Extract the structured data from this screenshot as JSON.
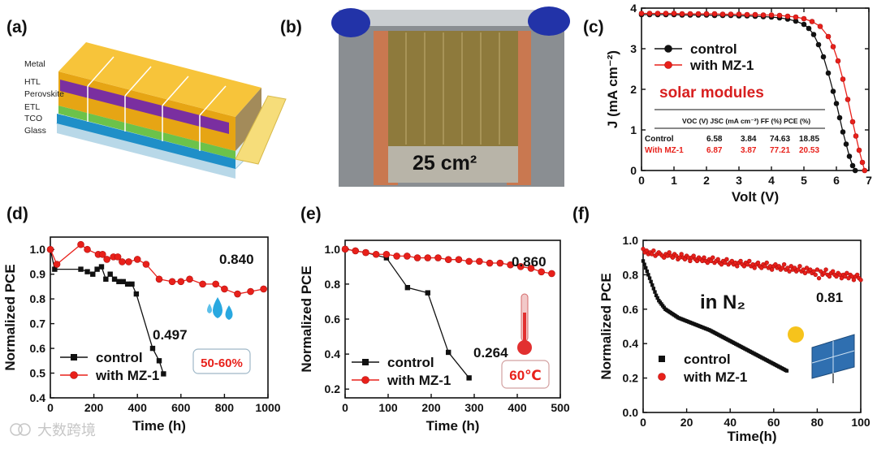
{
  "colors": {
    "control": "#111111",
    "mz": "#e8201a",
    "stack_gold": "#f3b21b",
    "perovskite": "#7a2fa0",
    "etl": "#6cc24a",
    "tco": "#1f8fc8",
    "solar_text": "#d81f1f"
  },
  "panel_a": {
    "label": "(a)",
    "layers": [
      "Metal",
      "HTL",
      "Perovskite",
      "ETL",
      "TCO",
      "Glass"
    ]
  },
  "panel_b": {
    "label": "(b)",
    "area_text": "25 cm²"
  },
  "chart_data": [
    {
      "id": "c",
      "type": "line",
      "panel_label": "(c)",
      "title": "",
      "xlabel": "Volt (V)",
      "ylabel": "J (mA cm⁻²)",
      "xlim": [
        0,
        7
      ],
      "ylim": [
        0,
        4
      ],
      "xticks": [
        "0",
        "1",
        "2",
        "3",
        "4",
        "5",
        "6",
        "7"
      ],
      "yticks": [
        "0",
        "1",
        "2",
        "3",
        "4"
      ],
      "annotation": "solar modules",
      "legend": [
        "control",
        "with MZ-1"
      ],
      "series": [
        {
          "name": "control",
          "x": [
            0,
            0.25,
            0.5,
            0.75,
            1,
            1.25,
            1.5,
            1.75,
            2,
            2.25,
            2.5,
            2.75,
            3,
            3.25,
            3.5,
            3.75,
            4,
            4.25,
            4.5,
            4.75,
            5,
            5.15,
            5.3,
            5.45,
            5.6,
            5.75,
            5.9,
            6.0,
            6.1,
            6.2,
            6.3,
            6.4,
            6.5,
            6.58
          ],
          "y": [
            3.84,
            3.84,
            3.84,
            3.84,
            3.84,
            3.83,
            3.83,
            3.83,
            3.83,
            3.82,
            3.82,
            3.82,
            3.81,
            3.81,
            3.8,
            3.79,
            3.78,
            3.76,
            3.73,
            3.68,
            3.6,
            3.5,
            3.35,
            3.1,
            2.8,
            2.4,
            1.95,
            1.65,
            1.3,
            0.95,
            0.65,
            0.35,
            0.12,
            0
          ]
        },
        {
          "name": "with MZ-1",
          "x": [
            0,
            0.25,
            0.5,
            0.75,
            1,
            1.25,
            1.5,
            1.75,
            2,
            2.25,
            2.5,
            2.75,
            3,
            3.25,
            3.5,
            3.75,
            4,
            4.25,
            4.5,
            4.75,
            5,
            5.25,
            5.5,
            5.75,
            5.9,
            6.05,
            6.2,
            6.35,
            6.5,
            6.6,
            6.7,
            6.8,
            6.87
          ],
          "y": [
            3.87,
            3.87,
            3.87,
            3.87,
            3.87,
            3.86,
            3.86,
            3.86,
            3.86,
            3.86,
            3.85,
            3.85,
            3.85,
            3.84,
            3.84,
            3.83,
            3.83,
            3.82,
            3.8,
            3.78,
            3.74,
            3.67,
            3.55,
            3.3,
            3.05,
            2.7,
            2.25,
            1.75,
            1.2,
            0.85,
            0.5,
            0.2,
            0
          ]
        }
      ],
      "table": {
        "headers": [
          "",
          "VOC (V)",
          "JSC (mA cm⁻²)",
          "FF (%)",
          "PCE (%)"
        ],
        "rows": [
          [
            "Control",
            "6.58",
            "3.84",
            "74.63",
            "18.85"
          ],
          [
            "With MZ-1",
            "6.87",
            "3.87",
            "77.21",
            "20.53"
          ]
        ]
      }
    },
    {
      "id": "d",
      "type": "line",
      "panel_label": "(d)",
      "xlabel": "Time (h)",
      "ylabel": "Normalized PCE",
      "xlim": [
        0,
        1000
      ],
      "ylim": [
        0.4,
        1.05
      ],
      "xticks": [
        "0",
        "200",
        "400",
        "600",
        "800",
        "1000"
      ],
      "yticks": [
        "0.4",
        "0.5",
        "0.6",
        "0.7",
        "0.8",
        "0.9",
        "1.0"
      ],
      "legend": [
        "control",
        "with MZ-1"
      ],
      "annotations": [
        "0.840",
        "0.497"
      ],
      "humidity_label": "50-60%",
      "series": [
        {
          "name": "control",
          "x": [
            0,
            20,
            140,
            170,
            195,
            215,
            235,
            255,
            275,
            295,
            315,
            335,
            355,
            375,
            395,
            470,
            500,
            520
          ],
          "y": [
            1.0,
            0.92,
            0.92,
            0.91,
            0.9,
            0.92,
            0.93,
            0.88,
            0.9,
            0.88,
            0.87,
            0.87,
            0.86,
            0.86,
            0.82,
            0.6,
            0.55,
            0.497
          ],
          "scale": 1
        },
        {
          "name": "with MZ-1",
          "x": [
            0,
            30,
            140,
            170,
            220,
            240,
            260,
            290,
            310,
            330,
            360,
            400,
            440,
            500,
            560,
            600,
            640,
            700,
            760,
            800,
            860,
            920,
            980
          ],
          "y": [
            1.0,
            0.94,
            1.02,
            1.0,
            0.98,
            0.98,
            0.96,
            0.97,
            0.97,
            0.95,
            0.95,
            0.96,
            0.94,
            0.88,
            0.87,
            0.87,
            0.88,
            0.86,
            0.86,
            0.84,
            0.82,
            0.83,
            0.84
          ]
        }
      ]
    },
    {
      "id": "e",
      "type": "line",
      "panel_label": "(e)",
      "xlabel": "Time (h)",
      "ylabel": "Normalized PCE",
      "xlim": [
        0,
        500
      ],
      "ylim": [
        0.15,
        1.05
      ],
      "xticks": [
        "0",
        "100",
        "200",
        "300",
        "400",
        "500"
      ],
      "yticks": [
        "0.2",
        "0.4",
        "0.6",
        "0.8",
        "1.0"
      ],
      "legend": [
        "control",
        "with MZ-1"
      ],
      "annotations": [
        "0.860",
        "0.264"
      ],
      "temperature_label": "60℃",
      "series": [
        {
          "name": "control",
          "x": [
            0,
            48,
            96,
            145,
            192,
            240,
            288
          ],
          "y": [
            1.0,
            0.98,
            0.95,
            0.78,
            0.75,
            0.41,
            0.264
          ]
        },
        {
          "name": "with MZ-1",
          "x": [
            0,
            24,
            48,
            72,
            96,
            120,
            144,
            168,
            192,
            216,
            240,
            264,
            288,
            312,
            336,
            360,
            384,
            408,
            432,
            456,
            480
          ],
          "y": [
            1.0,
            0.99,
            0.98,
            0.97,
            0.97,
            0.96,
            0.96,
            0.95,
            0.95,
            0.95,
            0.94,
            0.94,
            0.93,
            0.93,
            0.92,
            0.92,
            0.91,
            0.9,
            0.89,
            0.87,
            0.86
          ]
        }
      ]
    },
    {
      "id": "f",
      "type": "scatter",
      "panel_label": "(f)",
      "xlabel": "Time(h)",
      "ylabel": "Normalized PCE",
      "xlim": [
        0,
        100
      ],
      "ylim": [
        0,
        1.0
      ],
      "xticks": [
        "0",
        "20",
        "40",
        "60",
        "80",
        "100"
      ],
      "yticks": [
        "0.0",
        "0.2",
        "0.4",
        "0.6",
        "0.8",
        "1.0"
      ],
      "legend": [
        "control",
        "with MZ-1"
      ],
      "annotations": [
        "in N₂",
        "0.81"
      ],
      "series": [
        {
          "name": "control",
          "x": [
            0,
            0.6,
            1.2,
            1.8,
            2.4,
            3,
            3.6,
            4.2,
            4.8,
            5.4,
            6,
            6.6,
            7.2,
            7.8,
            8.4,
            9,
            9.6,
            10.2,
            10.8,
            11.4,
            12,
            12.6,
            13.2,
            13.8,
            14.4,
            15,
            15.6,
            16.2,
            16.8,
            17.4,
            18,
            18.6,
            19.2,
            19.8,
            20.4,
            21,
            21.6,
            22.2,
            22.8,
            23.4,
            24,
            24.6,
            25.2,
            25.8,
            26.4,
            27,
            27.6,
            28.2,
            28.8,
            29.4,
            30,
            30.6,
            31.2,
            31.8,
            32.4,
            33,
            33.6,
            34.2,
            34.8,
            35.4,
            36,
            36.6,
            37.2,
            37.8,
            38.4,
            39,
            39.6,
            40.2,
            40.8,
            41.4,
            42,
            42.6,
            43.2,
            43.8,
            44.4,
            45,
            45.6,
            46.2,
            46.8,
            47.4,
            48,
            48.6,
            49.2,
            49.8,
            50.4,
            51,
            51.6,
            52.2,
            52.8,
            53.4,
            54,
            54.6,
            55.2,
            55.8,
            56.4,
            57,
            57.6,
            58.2,
            58.8,
            59.4,
            60,
            60.6,
            61.2,
            61.8,
            62.4,
            63,
            63.6,
            64.2,
            64.8,
            65.4,
            66
          ],
          "y": [
            0.88,
            0.86,
            0.84,
            0.82,
            0.8,
            0.78,
            0.76,
            0.74,
            0.72,
            0.7,
            0.68,
            0.665,
            0.65,
            0.64,
            0.63,
            0.62,
            0.61,
            0.6,
            0.595,
            0.59,
            0.585,
            0.58,
            0.575,
            0.57,
            0.565,
            0.56,
            0.555,
            0.55,
            0.547,
            0.544,
            0.541,
            0.538,
            0.535,
            0.532,
            0.529,
            0.526,
            0.523,
            0.52,
            0.517,
            0.514,
            0.511,
            0.508,
            0.505,
            0.502,
            0.499,
            0.496,
            0.493,
            0.49,
            0.487,
            0.484,
            0.481,
            0.478,
            0.474,
            0.47,
            0.466,
            0.462,
            0.458,
            0.454,
            0.45,
            0.446,
            0.442,
            0.438,
            0.434,
            0.43,
            0.426,
            0.422,
            0.418,
            0.414,
            0.41,
            0.406,
            0.402,
            0.398,
            0.394,
            0.39,
            0.386,
            0.382,
            0.378,
            0.374,
            0.37,
            0.366,
            0.362,
            0.358,
            0.354,
            0.35,
            0.346,
            0.342,
            0.338,
            0.334,
            0.33,
            0.326,
            0.322,
            0.318,
            0.314,
            0.31,
            0.306,
            0.302,
            0.298,
            0.294,
            0.29,
            0.286,
            0.282,
            0.278,
            0.274,
            0.27,
            0.266,
            0.262,
            0.258,
            0.254,
            0.25,
            0.246,
            0.242
          ]
        },
        {
          "name": "with MZ-1",
          "x": [
            0,
            0.8,
            1.6,
            2.4,
            3.2,
            4,
            4.8,
            5.6,
            6.4,
            7.2,
            8,
            8.8,
            9.6,
            10.4,
            11.2,
            12,
            12.8,
            13.6,
            14.4,
            15.2,
            16,
            16.8,
            17.6,
            18.4,
            19.2,
            20,
            20.8,
            21.6,
            22.4,
            23.2,
            24,
            24.8,
            25.6,
            26.4,
            27.2,
            28,
            28.8,
            29.6,
            30.4,
            31.2,
            32,
            32.8,
            33.6,
            34.4,
            35.2,
            36,
            36.8,
            37.6,
            38.4,
            39.2,
            40,
            40.8,
            41.6,
            42.4,
            43.2,
            44,
            44.8,
            45.6,
            46.4,
            47.2,
            48,
            48.8,
            49.6,
            50.4,
            51.2,
            52,
            52.8,
            53.6,
            54.4,
            55.2,
            56,
            56.8,
            57.6,
            58.4,
            59.2,
            60,
            60.8,
            61.6,
            62.4,
            63.2,
            64,
            64.8,
            65.6,
            66.4,
            67.2,
            68,
            68.8,
            69.6,
            70.4,
            71.2,
            72,
            72.8,
            73.6,
            74.4,
            75.2,
            76,
            76.8,
            77.6,
            78.4,
            79.2,
            80,
            80.8,
            81.6,
            82.4,
            83.2,
            84,
            84.8,
            85.6,
            86.4,
            87.2,
            88,
            88.8,
            89.6,
            90.4,
            91.2,
            92,
            92.8,
            93.6,
            94.4,
            95.2,
            96,
            96.8,
            97.6,
            98.4,
            99.2,
            100
          ],
          "y": [
            0.95,
            0.93,
            0.94,
            0.92,
            0.93,
            0.92,
            0.94,
            0.91,
            0.92,
            0.93,
            0.92,
            0.91,
            0.9,
            0.92,
            0.91,
            0.93,
            0.91,
            0.9,
            0.92,
            0.91,
            0.89,
            0.9,
            0.92,
            0.9,
            0.89,
            0.91,
            0.9,
            0.88,
            0.9,
            0.91,
            0.89,
            0.88,
            0.9,
            0.89,
            0.88,
            0.9,
            0.88,
            0.87,
            0.89,
            0.88,
            0.9,
            0.87,
            0.88,
            0.89,
            0.87,
            0.86,
            0.88,
            0.87,
            0.89,
            0.86,
            0.87,
            0.88,
            0.86,
            0.87,
            0.85,
            0.87,
            0.88,
            0.86,
            0.85,
            0.87,
            0.86,
            0.88,
            0.85,
            0.86,
            0.84,
            0.86,
            0.87,
            0.85,
            0.84,
            0.86,
            0.85,
            0.87,
            0.84,
            0.85,
            0.83,
            0.85,
            0.86,
            0.84,
            0.85,
            0.83,
            0.84,
            0.86,
            0.83,
            0.84,
            0.82,
            0.85,
            0.83,
            0.84,
            0.82,
            0.83,
            0.85,
            0.82,
            0.83,
            0.81,
            0.84,
            0.82,
            0.83,
            0.81,
            0.82,
            0.8,
            0.83,
            0.78,
            0.82,
            0.8,
            0.81,
            0.83,
            0.8,
            0.79,
            0.81,
            0.82,
            0.8,
            0.79,
            0.81,
            0.8,
            0.78,
            0.8,
            0.79,
            0.81,
            0.78,
            0.8,
            0.79,
            0.77,
            0.79,
            0.8,
            0.78,
            0.77
          ]
        }
      ]
    }
  ],
  "watermark": "大数跨境"
}
